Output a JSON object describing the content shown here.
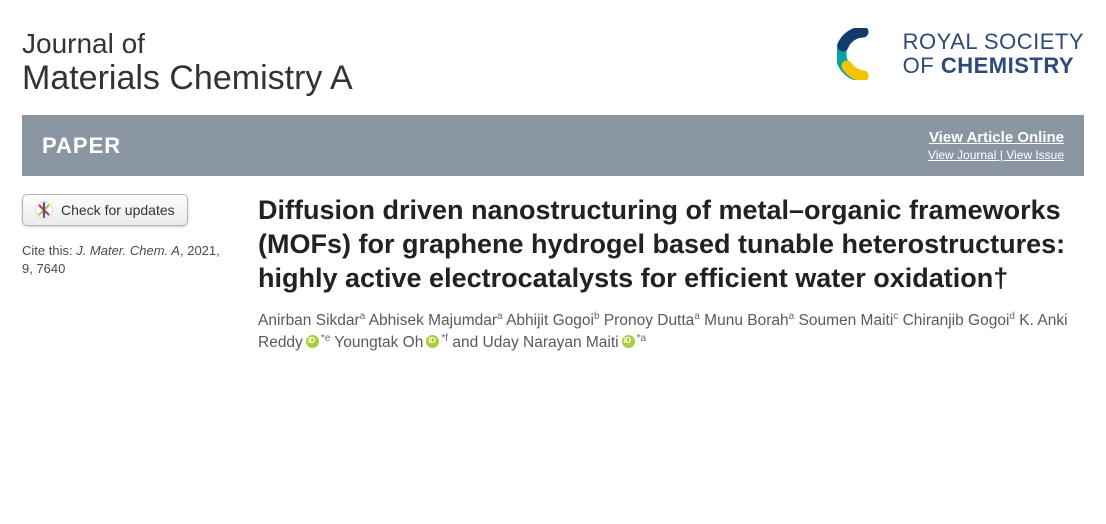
{
  "journal": {
    "line1": "Journal of",
    "line2": "Materials Chemistry A"
  },
  "publisher_logo": {
    "line1": "ROYAL SOCIETY",
    "line2_prefix": "OF ",
    "line2_bold": "CHEMISTRY",
    "teal": "#0aa3a3",
    "yellow": "#f5c400",
    "navy": "#123a6b"
  },
  "banner": {
    "label": "PAPER",
    "view_article": "View Article Online",
    "view_journal": "View Journal",
    "sep": " | ",
    "view_issue": "View Issue",
    "bg": "#8a97a3"
  },
  "sidebar": {
    "check_updates": "Check for updates",
    "cite_prefix": "Cite this: ",
    "cite_journal": "J. Mater. Chem. A",
    "cite_rest": ", 2021, 9, 7640"
  },
  "article": {
    "title": "Diffusion driven nanostructuring of metal–organic frameworks (MOFs) for graphene hydrogel based tunable heterostructures: highly active electrocatalysts for efficient water oxidation†"
  },
  "authors": [
    {
      "name": "Anirban Sikdar",
      "aff": "a"
    },
    {
      "name": "Abhisek Majumdar",
      "aff": "a"
    },
    {
      "name": "Abhijit Gogoi",
      "aff": "b"
    },
    {
      "name": "Pronoy Dutta",
      "aff": "a"
    },
    {
      "name": "Munu Borah",
      "aff": "a"
    },
    {
      "name": "Soumen Maiti",
      "aff": "c"
    },
    {
      "name": "Chiranjib Gogoi",
      "aff": "d"
    },
    {
      "name": "K. Anki Reddy",
      "aff": "*e",
      "orcid": true
    },
    {
      "name": "Youngtak Oh",
      "aff": "*f",
      "orcid": true
    },
    {
      "name": "Uday Narayan Maiti",
      "aff": "*a",
      "orcid": true,
      "last": true
    }
  ]
}
